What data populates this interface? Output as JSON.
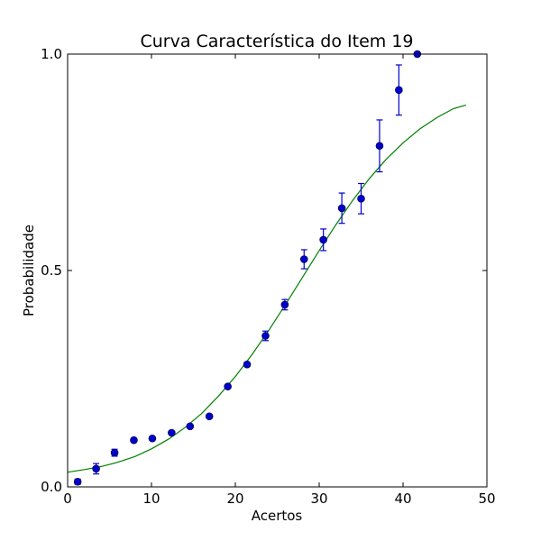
{
  "chart_data": {
    "type": "scatter",
    "title": "Curva Característica do Item 19",
    "xlabel": "Acertos",
    "ylabel": "Probabilidade",
    "xlim": [
      0,
      50
    ],
    "ylim": [
      0.0,
      1.0
    ],
    "xticks": [
      0,
      10,
      20,
      30,
      40,
      50
    ],
    "xtick_labels": [
      "0",
      "10",
      "20",
      "30",
      "40",
      "50"
    ],
    "yticks": [
      0.0,
      0.5,
      1.0
    ],
    "ytick_labels": [
      "0.0",
      "0.5",
      "1.0"
    ],
    "grid": false,
    "series": [
      {
        "kind": "points-with-error-bars",
        "color": "#0000cc",
        "x": [
          1.2,
          3.4,
          5.6,
          7.9,
          10.1,
          12.4,
          14.6,
          16.9,
          19.1,
          21.4,
          23.6,
          25.9,
          28.2,
          30.5,
          32.7,
          35.0,
          37.2,
          39.5,
          41.7
        ],
        "y": [
          0.012,
          0.042,
          0.079,
          0.108,
          0.112,
          0.125,
          0.14,
          0.163,
          0.232,
          0.283,
          0.349,
          0.421,
          0.526,
          0.571,
          0.644,
          0.666,
          0.788,
          0.917,
          1.0
        ],
        "yerr": [
          0.006,
          0.012,
          0.008,
          0.0,
          0.0,
          0.0,
          0.0,
          0.0,
          0.0,
          0.0,
          0.011,
          0.012,
          0.022,
          0.025,
          0.035,
          0.035,
          0.06,
          0.058,
          0.0
        ]
      },
      {
        "kind": "fitted-curve",
        "color": "#008000",
        "x": [
          0,
          2,
          4,
          6,
          8,
          10,
          12,
          14,
          16,
          18,
          20,
          22,
          24,
          26,
          28,
          30,
          32,
          34,
          36,
          38,
          40,
          42,
          44,
          46,
          47.5
        ],
        "y": [
          0.034,
          0.04,
          0.047,
          0.057,
          0.07,
          0.088,
          0.11,
          0.137,
          0.17,
          0.21,
          0.255,
          0.306,
          0.362,
          0.422,
          0.484,
          0.546,
          0.606,
          0.662,
          0.713,
          0.757,
          0.795,
          0.827,
          0.853,
          0.874,
          0.882
        ]
      }
    ]
  }
}
